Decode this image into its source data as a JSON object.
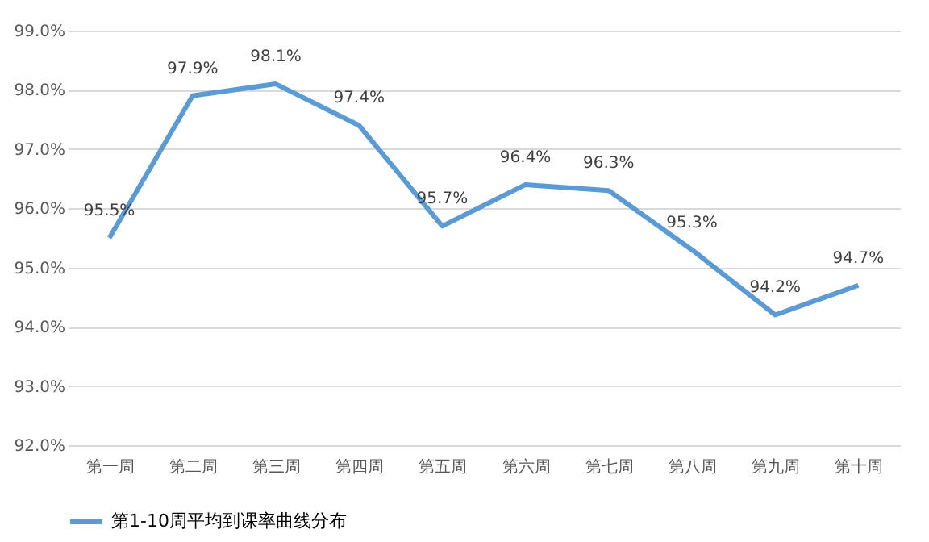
{
  "chart_data": {
    "type": "line",
    "categories": [
      "第一周",
      "第二周",
      "第三周",
      "第四周",
      "第五周",
      "第六周",
      "第七周",
      "第八周",
      "第九周",
      "第十周"
    ],
    "series": [
      {
        "name": "第1-10周平均到课率曲线分布",
        "color": "#5b9bd5",
        "values": [
          95.5,
          97.9,
          98.1,
          97.4,
          95.7,
          96.4,
          96.3,
          95.3,
          94.2,
          94.7
        ],
        "value_labels": [
          "95.5%",
          "97.9%",
          "98.1%",
          "97.4%",
          "95.7%",
          "96.4%",
          "96.3%",
          "95.3%",
          "94.2%",
          "94.7%"
        ]
      }
    ],
    "ylim": [
      92,
      99
    ],
    "yticks": [
      {
        "value": 92,
        "label": "92.0%"
      },
      {
        "value": 93,
        "label": "93.0%"
      },
      {
        "value": 94,
        "label": "94.0%"
      },
      {
        "value": 95,
        "label": "95.0%"
      },
      {
        "value": 96,
        "label": "96.0%"
      },
      {
        "value": 97,
        "label": "97.0%"
      },
      {
        "value": 98,
        "label": "98.0%"
      },
      {
        "value": 99,
        "label": "99.0%"
      }
    ],
    "grid": "y",
    "legend": "bottom",
    "marker": "none",
    "line_style": "solid"
  }
}
